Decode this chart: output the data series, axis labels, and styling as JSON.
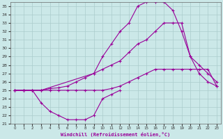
{
  "xlabel": "Windchill (Refroidissement éolien,°C)",
  "ylabel": "",
  "background_color": "#cbe8e8",
  "grid_color": "#aacccc",
  "line_color": "#990099",
  "xlim": [
    -0.5,
    23.5
  ],
  "ylim": [
    21,
    35.5
  ],
  "xticks": [
    0,
    1,
    2,
    3,
    4,
    5,
    6,
    7,
    8,
    9,
    10,
    11,
    12,
    13,
    14,
    15,
    16,
    17,
    18,
    19,
    20,
    21,
    22,
    23
  ],
  "yticks": [
    21,
    22,
    23,
    24,
    25,
    26,
    27,
    28,
    29,
    30,
    31,
    32,
    33,
    34,
    35
  ],
  "series": [
    {
      "x": [
        0,
        1,
        2,
        3,
        9,
        10,
        11,
        12,
        13,
        14,
        15,
        16,
        17,
        18,
        19,
        20,
        21,
        22,
        23
      ],
      "y": [
        25,
        25,
        25,
        25,
        27,
        29,
        30.5,
        32,
        33,
        35,
        35.5,
        35.5,
        35.5,
        34.5,
        32,
        29,
        27,
        26,
        25.5
      ]
    },
    {
      "x": [
        0,
        1,
        2,
        3,
        4,
        5,
        6,
        7,
        8,
        9,
        10,
        11,
        12,
        13,
        14,
        15,
        16,
        17,
        18,
        19,
        20,
        21,
        22,
        23
      ],
      "y": [
        25,
        25,
        25,
        25,
        25.2,
        25.3,
        25.5,
        26,
        26.5,
        27,
        27.5,
        28,
        28.5,
        29.5,
        30.5,
        31,
        32,
        33,
        33,
        33,
        29,
        28,
        27,
        26
      ]
    },
    {
      "x": [
        0,
        1,
        2,
        3,
        4,
        5,
        6,
        7,
        8,
        9,
        10,
        11,
        12,
        13,
        14,
        15,
        16,
        17,
        18,
        19,
        20,
        21,
        22,
        23
      ],
      "y": [
        25,
        25,
        25,
        25,
        25,
        25,
        25,
        25,
        25,
        25,
        25,
        25.2,
        25.5,
        26,
        26.5,
        27,
        27.5,
        27.5,
        27.5,
        27.5,
        27.5,
        27.5,
        27.5,
        25.5
      ]
    },
    {
      "x": [
        0,
        1,
        2,
        3,
        4,
        5,
        6,
        7,
        8,
        9,
        10,
        11,
        12
      ],
      "y": [
        25,
        25,
        25,
        23.5,
        22.5,
        22,
        21.5,
        21.5,
        21.5,
        22,
        24,
        24.5,
        25
      ]
    }
  ]
}
